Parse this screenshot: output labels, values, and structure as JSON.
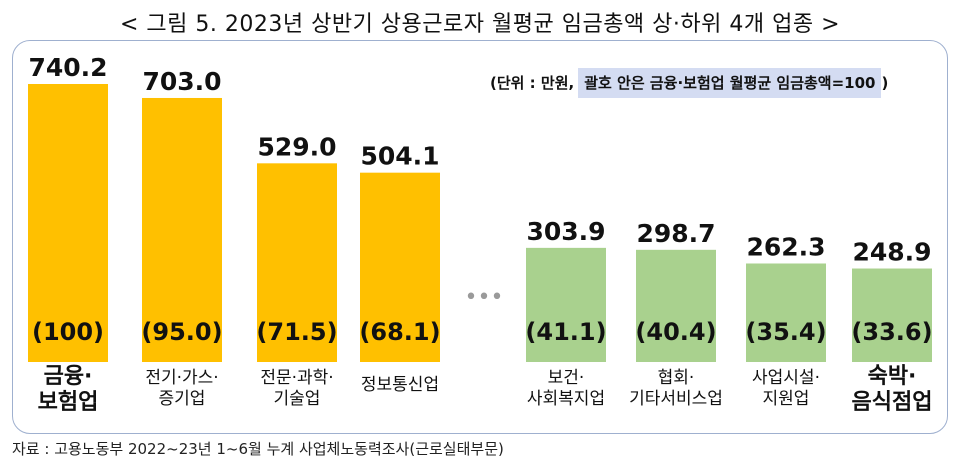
{
  "title": "< 그림 5. 2023년 상반기 상용근로자 월평균 임금총액 상·하위 4개 업종 >",
  "unit_note": {
    "prefix": "(단위 : 만원,",
    "highlight": "괄호 안은 금융·보험업 월평균 임금총액=100",
    "suffix": ")"
  },
  "source": "자료 : 고용노동부 2022~23년 1~6월 누계 사업체노동력조사(근로실태부문)",
  "ellipsis": "•••",
  "colors": {
    "top": "#ffc000",
    "bottom": "#a9d18e"
  },
  "chart_data": {
    "type": "bar",
    "title": "2023년 상반기 상용근로자 월평균 임금총액 상·하위 4개 업종",
    "ylim": [
      0,
      760
    ],
    "grid": false,
    "bars": [
      {
        "label": [
          "금융·",
          "보험업"
        ],
        "value": 740.2,
        "index": "(100)",
        "group": "top",
        "label_bold": true
      },
      {
        "label": [
          "전기·가스·",
          "증기업"
        ],
        "value": 703.0,
        "index": "(95.0)",
        "group": "top",
        "label_bold": false
      },
      {
        "label": [
          "전문·과학·",
          "기술업"
        ],
        "value": 529.0,
        "index": "(71.5)",
        "group": "top",
        "label_bold": false
      },
      {
        "label": [
          "정보통신업"
        ],
        "value": 504.1,
        "index": "(68.1)",
        "group": "top",
        "label_bold": false
      },
      {
        "label": [
          "보건·",
          "사회복지업"
        ],
        "value": 303.9,
        "index": "(41.1)",
        "group": "bottom",
        "label_bold": false
      },
      {
        "label": [
          "협회·",
          "기타서비스업"
        ],
        "value": 298.7,
        "index": "(40.4)",
        "group": "bottom",
        "label_bold": false
      },
      {
        "label": [
          "사업시설·",
          "지원업"
        ],
        "value": 262.3,
        "index": "(35.4)",
        "group": "bottom",
        "label_bold": false
      },
      {
        "label": [
          "숙박·",
          "음식점업"
        ],
        "value": 248.9,
        "index": "(33.6)",
        "group": "bottom",
        "label_bold": true
      }
    ]
  }
}
